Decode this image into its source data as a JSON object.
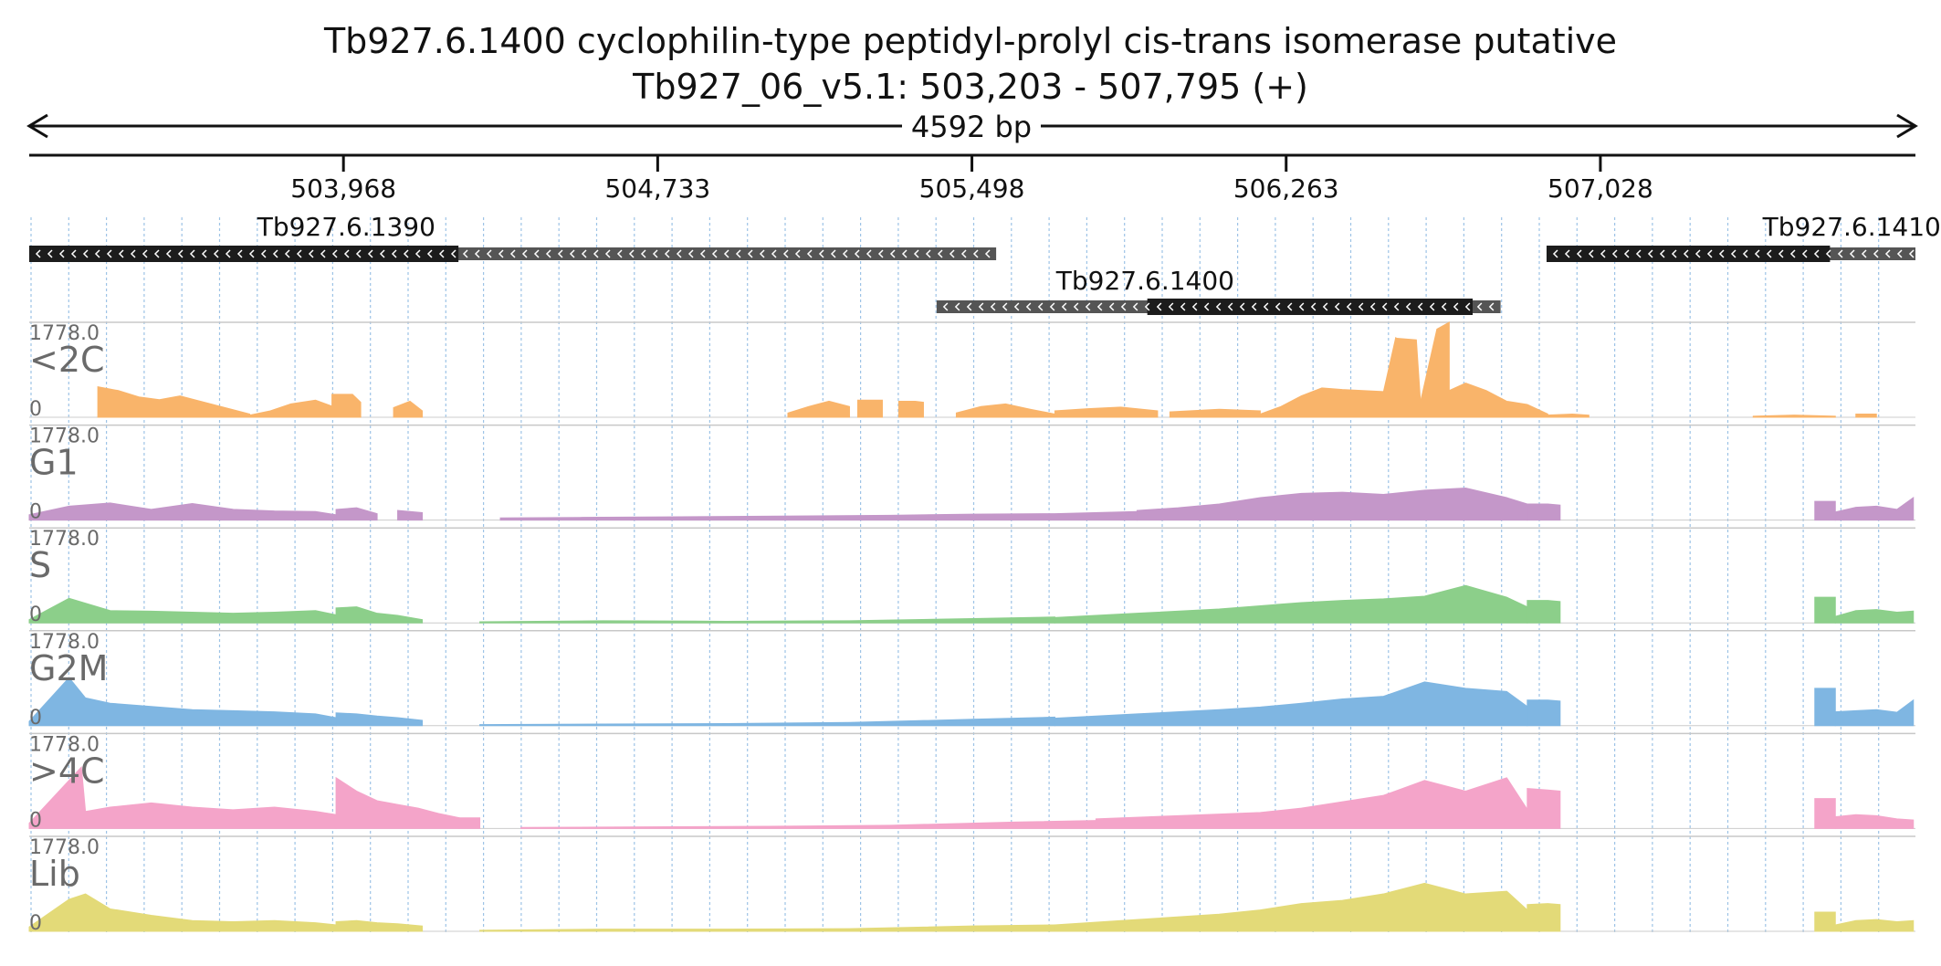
{
  "header": {
    "title": "Tb927.6.1400  cyclophilin-type peptidyl-prolyl cis-trans isomerase  putative",
    "subtitle": "Tb927_06_v5.1: 503,203 - 507,795 (+)",
    "span_label": "4592 bp"
  },
  "axis": {
    "ticks": [
      {
        "value": 503968,
        "label": "503,968"
      },
      {
        "value": 504733,
        "label": "504,733"
      },
      {
        "value": 505498,
        "label": "505,498"
      },
      {
        "value": 506263,
        "label": "506,263"
      },
      {
        "value": 507028,
        "label": "507,028"
      }
    ]
  },
  "genes": [
    {
      "name": "Tb927.6.1390",
      "strand": "-",
      "start": 503203,
      "end": 505557,
      "cds_start": 503203,
      "cds_end": 504248
    },
    {
      "name": "Tb927.6.1400",
      "strand": "-",
      "start": 505412,
      "end": 506785,
      "cds_start": 505925,
      "cds_end": 506717
    },
    {
      "name": "Tb927.6.1410",
      "strand": "-",
      "start": 506897,
      "end": 507795,
      "cds_start": 506897,
      "cds_end": 507587
    }
  ],
  "colors": {
    "cds": "#1c1c1c",
    "utr": "#555555",
    "grid": "#9dc3e6",
    "separator": "#c8c8c8",
    "track_label": "#6a6a6a"
  },
  "chart_data": {
    "type": "area",
    "x_range": [
      503203,
      507795
    ],
    "ylim": [
      0,
      1778.0
    ],
    "ymax_label": "1778.0",
    "ymin_label": "0",
    "tracks": [
      {
        "name": "<2C",
        "color": "#f9b46a",
        "segments": [
          {
            "x": [
              503370,
              503420,
              503470,
              503520,
              503570,
              503620,
              503680,
              503740
            ],
            "y": [
              570,
              500,
              380,
              330,
              400,
              300,
              180,
              60
            ]
          },
          {
            "x": [
              503740,
              503790,
              503840,
              503900,
              503950,
              504000
            ],
            "y": [
              40,
              120,
              250,
              320,
              180,
              50
            ]
          },
          {
            "x": [
              503940,
              503990,
              504010
            ],
            "y": [
              430,
              430,
              280
            ]
          },
          {
            "x": [
              504090,
              504130,
              504160
            ],
            "y": [
              180,
              300,
              120
            ]
          },
          {
            "x": [
              505050,
              505100,
              505150,
              505200
            ],
            "y": [
              80,
              200,
              300,
              200
            ]
          },
          {
            "x": [
              505220,
              505260,
              505280
            ],
            "y": [
              320,
              320,
              320
            ]
          },
          {
            "x": [
              505320,
              505360,
              505380
            ],
            "y": [
              300,
              300,
              280
            ]
          },
          {
            "x": [
              505460,
              505520,
              505580,
              505640,
              505700
            ],
            "y": [
              80,
              200,
              250,
              150,
              60
            ]
          },
          {
            "x": [
              505700,
              505780,
              505860,
              505950
            ],
            "y": [
              120,
              160,
              190,
              120
            ]
          },
          {
            "x": [
              505980,
              506100,
              506200
            ],
            "y": [
              100,
              150,
              120
            ]
          },
          {
            "x": [
              506200,
              506250,
              506300,
              506350,
              506400,
              506450,
              506500,
              506530
            ],
            "y": [
              60,
              200,
              400,
              550,
              520,
              500,
              480,
              1500
            ]
          },
          {
            "x": [
              506530,
              506580,
              506590
            ],
            "y": [
              1480,
              1450,
              300
            ]
          },
          {
            "x": [
              506590,
              506630,
              506660
            ],
            "y": [
              290,
              1650,
              1778
            ]
          },
          {
            "x": [
              506660,
              506700,
              506750,
              506800,
              506850,
              506900
            ],
            "y": [
              500,
              640,
              500,
              300,
              240,
              60
            ]
          },
          {
            "x": [
              506900,
              506960,
              507000
            ],
            "y": [
              40,
              60,
              40
            ]
          },
          {
            "x": [
              507400,
              507500,
              507600
            ],
            "y": [
              20,
              40,
              20
            ]
          },
          {
            "x": [
              507650,
              507700
            ],
            "y": [
              60,
              60
            ]
          }
        ]
      },
      {
        "name": "G1",
        "color": "#c497c9",
        "segments": [
          {
            "x": [
              503203,
              503300,
              503400,
              503500,
              503600,
              503700,
              503800,
              503900,
              503950
            ],
            "y": [
              100,
              260,
              320,
              200,
              310,
              200,
              170,
              160,
              100
            ]
          },
          {
            "x": [
              503950,
              504000,
              504050
            ],
            "y": [
              200,
              230,
              120
            ]
          },
          {
            "x": [
              504100,
              504160
            ],
            "y": [
              180,
              140
            ]
          },
          {
            "x": [
              504350,
              504550,
              504750,
              504950,
              505150,
              505300,
              505500,
              505700,
              505900
            ],
            "y": [
              40,
              50,
              60,
              70,
              80,
              90,
              110,
              120,
              160
            ]
          },
          {
            "x": [
              505900,
              506000,
              506100,
              506200,
              506300,
              506400,
              506500,
              506600,
              506700,
              506800,
              506850
            ],
            "y": [
              180,
              230,
              300,
              420,
              500,
              520,
              480,
              560,
              600,
              420,
              300
            ]
          },
          {
            "x": [
              506850,
              506900,
              506930
            ],
            "y": [
              300,
              300,
              280
            ]
          },
          {
            "x": [
              507550,
              507600
            ],
            "y": [
              350,
              350
            ]
          },
          {
            "x": [
              507600,
              507650,
              507700,
              507750,
              507790
            ],
            "y": [
              150,
              240,
              260,
              200,
              420
            ]
          }
        ]
      },
      {
        "name": "S",
        "color": "#8ccf8a",
        "segments": [
          {
            "x": [
              503203,
              503300,
              503400,
              503500,
              503600,
              503700,
              503800,
              503900,
              503950
            ],
            "y": [
              60,
              460,
              230,
              220,
              200,
              180,
              200,
              230,
              150
            ]
          },
          {
            "x": [
              503950,
              504000,
              504050,
              504100,
              504160
            ],
            "y": [
              280,
              300,
              180,
              140,
              60
            ]
          },
          {
            "x": [
              504300,
              504600,
              504900,
              505200,
              505500,
              505700
            ],
            "y": [
              20,
              40,
              30,
              40,
              80,
              110
            ]
          },
          {
            "x": [
              505700,
              505900,
              506100,
              506200,
              506300,
              506400,
              506500,
              506600,
              506700,
              506800,
              506850
            ],
            "y": [
              100,
              180,
              260,
              320,
              380,
              420,
              450,
              500,
              700,
              480,
              300
            ]
          },
          {
            "x": [
              506850,
              506900,
              506930
            ],
            "y": [
              420,
              420,
              400
            ]
          },
          {
            "x": [
              507550,
              507600
            ],
            "y": [
              480,
              480
            ]
          },
          {
            "x": [
              507600,
              507650,
              507700,
              507750,
              507790
            ],
            "y": [
              120,
              230,
              250,
              200,
              220
            ]
          }
        ]
      },
      {
        "name": "G2M",
        "color": "#7fb6e2",
        "segments": [
          {
            "x": [
              503203,
              503300,
              503340,
              503400,
              503500,
              503600,
              503700,
              503800,
              503900,
              503950
            ],
            "y": [
              80,
              900,
              520,
              420,
              360,
              300,
              280,
              260,
              220,
              150
            ]
          },
          {
            "x": [
              503950,
              504000,
              504050,
              504100,
              504160
            ],
            "y": [
              240,
              220,
              180,
              150,
              100
            ]
          },
          {
            "x": [
              504300,
              504600,
              504900,
              505200,
              505500,
              505700
            ],
            "y": [
              20,
              30,
              40,
              60,
              120,
              160
            ]
          },
          {
            "x": [
              505700,
              505900,
              506100,
              506200,
              506300,
              506400,
              506500,
              506600,
              506700,
              506800,
              506850
            ],
            "y": [
              140,
              220,
              300,
              350,
              420,
              500,
              550,
              820,
              700,
              640,
              360
            ]
          },
          {
            "x": [
              506850,
              506900,
              506930
            ],
            "y": [
              480,
              480,
              460
            ]
          },
          {
            "x": [
              507550,
              507600
            ],
            "y": [
              700,
              700
            ]
          },
          {
            "x": [
              507600,
              507650,
              507700,
              507750,
              507790
            ],
            "y": [
              260,
              280,
              300,
              250,
              480
            ]
          }
        ]
      },
      {
        "name": ">4C",
        "color": "#f4a4c9",
        "segments": [
          {
            "x": [
              503203,
              503330,
              503340,
              503400,
              503500,
              503600,
              503700,
              503800,
              503900,
              503950
            ],
            "y": [
              100,
              1150,
              320,
              400,
              480,
              400,
              350,
              400,
              320,
              260
            ]
          },
          {
            "x": [
              503950,
              504000,
              504050,
              504100,
              504150,
              504200,
              504250
            ],
            "y": [
              950,
              700,
              520,
              450,
              380,
              280,
              200
            ]
          },
          {
            "x": [
              504250,
              504300
            ],
            "y": [
              200,
              200
            ]
          },
          {
            "x": [
              504400,
              504700,
              505000,
              505300,
              505600,
              505800
            ],
            "y": [
              20,
              30,
              40,
              60,
              120,
              150
            ]
          },
          {
            "x": [
              505800,
              506000,
              506200,
              506300,
              506400,
              506500,
              506600,
              506700,
              506800,
              506850
            ],
            "y": [
              180,
              240,
              300,
              380,
              500,
              620,
              900,
              700,
              950,
              360
            ]
          },
          {
            "x": [
              506850,
              506900,
              506930
            ],
            "y": [
              750,
              720,
              700
            ]
          },
          {
            "x": [
              507550,
              507600
            ],
            "y": [
              560,
              560
            ]
          },
          {
            "x": [
              507600,
              507650,
              507700,
              507750,
              507790
            ],
            "y": [
              220,
              260,
              240,
              180,
              160
            ]
          }
        ]
      },
      {
        "name": "Lib",
        "color": "#e3da78",
        "segments": [
          {
            "x": [
              503203,
              503300,
              503340,
              503400,
              503500,
              503600,
              503700,
              503800,
              503900,
              503950
            ],
            "y": [
              80,
              600,
              700,
              420,
              300,
              200,
              180,
              200,
              160,
              120
            ]
          },
          {
            "x": [
              503950,
              504000,
              504050,
              504100,
              504160
            ],
            "y": [
              180,
              200,
              160,
              140,
              100
            ]
          },
          {
            "x": [
              504300,
              504600,
              504900,
              505200,
              505500,
              505700
            ],
            "y": [
              20,
              40,
              40,
              50,
              100,
              120
            ]
          },
          {
            "x": [
              505700,
              505900,
              506100,
              506200,
              506300,
              506400,
              506500,
              506600,
              506700,
              506800,
              506850
            ],
            "y": [
              120,
              220,
              320,
              400,
              520,
              580,
              700,
              900,
              700,
              750,
              400
            ]
          },
          {
            "x": [
              506850,
              506900,
              506930
            ],
            "y": [
              500,
              520,
              500
            ]
          },
          {
            "x": [
              507550,
              507600
            ],
            "y": [
              360,
              360
            ]
          },
          {
            "x": [
              507600,
              507650,
              507700,
              507750,
              507790
            ],
            "y": [
              120,
              200,
              220,
              180,
              200
            ]
          }
        ]
      }
    ]
  }
}
